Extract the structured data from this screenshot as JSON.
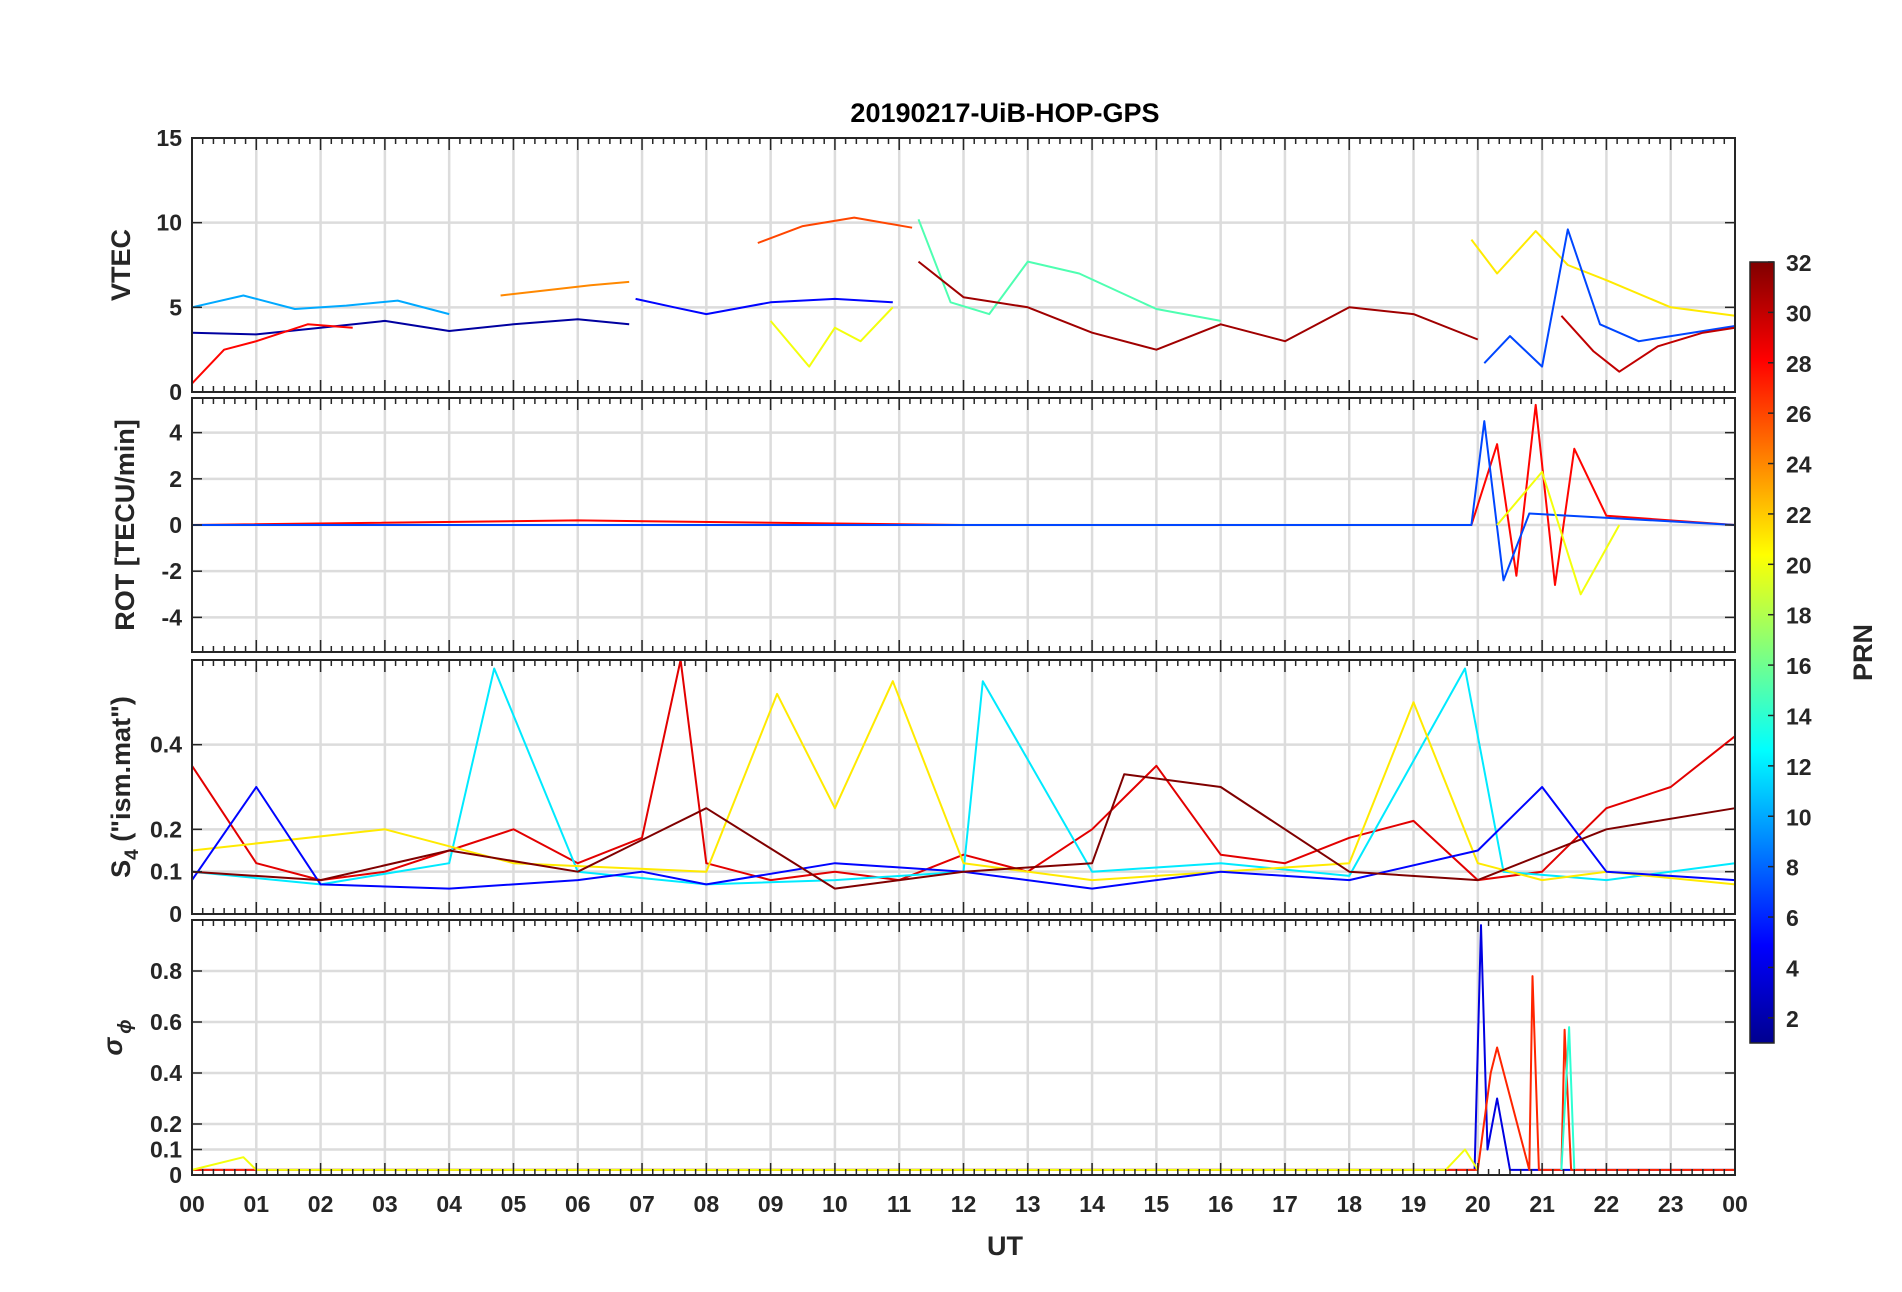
{
  "chart_data": {
    "type": "line",
    "title": "20190217-UiB-HOP-GPS",
    "xlabel": "UT",
    "x_tick_labels": [
      "00",
      "01",
      "02",
      "03",
      "04",
      "05",
      "06",
      "07",
      "08",
      "09",
      "10",
      "11",
      "12",
      "13",
      "14",
      "15",
      "16",
      "17",
      "18",
      "19",
      "20",
      "21",
      "22",
      "23",
      "00"
    ],
    "xlim": [
      0,
      24
    ],
    "grid": true,
    "colorbar": {
      "label": "PRN",
      "range": [
        1,
        32
      ],
      "ticks": [
        "2",
        "4",
        "6",
        "8",
        "10",
        "12",
        "14",
        "16",
        "18",
        "20",
        "22",
        "24",
        "26",
        "28",
        "30",
        "32"
      ],
      "colormap": "jet"
    },
    "panels": [
      {
        "id": "vtec",
        "ylabel": "VTEC",
        "ylim": [
          0,
          15
        ],
        "y_ticks": [
          "0",
          "5",
          "10",
          "15"
        ],
        "y_tick_values": [
          0,
          5,
          10,
          15
        ],
        "series": [
          {
            "prn": 2,
            "x": [
              0,
              1,
              2,
              3,
              4,
              5,
              6,
              6.8
            ],
            "y": [
              3.5,
              3.4,
              3.8,
              4.2,
              3.6,
              4.0,
              4.3,
              4.0
            ]
          },
          {
            "prn": 5,
            "x": [
              6.9,
              7.5,
              8,
              9,
              10,
              10.9
            ],
            "y": [
              5.5,
              5.0,
              4.6,
              5.3,
              5.5,
              5.3
            ]
          },
          {
            "prn": 10,
            "x": [
              0,
              0.8,
              1.6,
              2.4,
              3.2,
              4
            ],
            "y": [
              5.0,
              5.7,
              4.9,
              5.1,
              5.4,
              4.6
            ]
          },
          {
            "prn": 26,
            "x": [
              8.8,
              9.5,
              10.3,
              11.2
            ],
            "y": [
              8.8,
              9.8,
              10.3,
              9.7
            ]
          },
          {
            "prn": 20,
            "x": [
              9,
              9.6,
              10,
              10.4,
              10.9
            ],
            "y": [
              4.2,
              1.5,
              3.8,
              3.0,
              5.0
            ]
          },
          {
            "prn": 15,
            "x": [
              11.3,
              11.8,
              12.4,
              13,
              13.8,
              15,
              16
            ],
            "y": [
              10.2,
              5.3,
              4.6,
              7.7,
              7.0,
              4.9,
              4.2
            ]
          },
          {
            "prn": 31,
            "x": [
              11.3,
              12,
              13,
              14,
              15,
              16,
              17,
              18,
              19,
              20
            ],
            "y": [
              7.7,
              5.6,
              5.0,
              3.5,
              2.5,
              4.0,
              3.0,
              5.0,
              4.6,
              3.1
            ]
          },
          {
            "prn": 24,
            "x": [
              4.8,
              5.5,
              6.2,
              6.8
            ],
            "y": [
              5.7,
              6.0,
              6.3,
              6.5
            ]
          },
          {
            "prn": 21,
            "x": [
              19.9,
              20.3,
              20.9,
              21.4,
              22,
              23,
              24
            ],
            "y": [
              9.0,
              7.0,
              9.5,
              7.5,
              6.6,
              5.0,
              4.5
            ]
          },
          {
            "prn": 7,
            "x": [
              20.1,
              20.5,
              21,
              21.4,
              21.9,
              22.5,
              24
            ],
            "y": [
              1.7,
              3.3,
              1.5,
              9.6,
              4.0,
              3.0,
              3.9
            ]
          },
          {
            "prn": 28,
            "x": [
              0,
              0.5,
              1,
              1.8,
              2.5
            ],
            "y": [
              0.5,
              2.5,
              3.0,
              4.0,
              3.8
            ]
          },
          {
            "prn": 30,
            "x": [
              21.3,
              21.8,
              22.2,
              22.8,
              23.5,
              24
            ],
            "y": [
              4.5,
              2.4,
              1.2,
              2.7,
              3.5,
              3.8
            ]
          }
        ]
      },
      {
        "id": "rot",
        "ylabel": "ROT [TECU/min]",
        "ylim": [
          -5.5,
          5.5
        ],
        "y_ticks": [
          "-4",
          "-2",
          "0",
          "2",
          "4"
        ],
        "y_tick_values": [
          -4,
          -2,
          0,
          2,
          4
        ],
        "series": [
          {
            "prn": 28,
            "x": [
              0,
              6,
              12,
              19.9,
              20.3,
              20.6,
              20.9,
              21.2,
              21.5,
              22,
              24
            ],
            "y": [
              0,
              0.2,
              0,
              0,
              3.5,
              -2.2,
              5.2,
              -2.6,
              3.3,
              0.4,
              0
            ]
          },
          {
            "prn": 7,
            "x": [
              0,
              19.9,
              20.1,
              20.4,
              20.8,
              24
            ],
            "y": [
              0,
              0,
              4.5,
              -2.4,
              0.5,
              0
            ]
          },
          {
            "prn": 20,
            "x": [
              20.3,
              21,
              21.6,
              22.2
            ],
            "y": [
              0,
              2.3,
              -3.0,
              0
            ]
          }
        ]
      },
      {
        "id": "s4",
        "ylabel": "S4 (\"ism.mat\")",
        "ylim": [
          0,
          0.6
        ],
        "y_ticks": [
          "0",
          "0.1",
          "0.2",
          "0.4"
        ],
        "y_tick_values": [
          0,
          0.1,
          0.2,
          0.4
        ],
        "series": [
          {
            "prn": 29,
            "x": [
              0,
              1,
              2,
              3,
              4,
              5,
              6,
              7,
              7.6,
              8,
              9,
              10,
              11,
              12,
              13,
              14,
              15,
              16,
              17,
              18,
              19,
              20,
              21,
              22,
              23,
              24
            ],
            "y": [
              0.35,
              0.12,
              0.08,
              0.1,
              0.15,
              0.2,
              0.12,
              0.18,
              0.6,
              0.12,
              0.08,
              0.1,
              0.08,
              0.14,
              0.1,
              0.2,
              0.35,
              0.14,
              0.12,
              0.18,
              0.22,
              0.08,
              0.1,
              0.25,
              0.3,
              0.42
            ]
          },
          {
            "prn": 12,
            "x": [
              0,
              2,
              4,
              4.7,
              6,
              8,
              10,
              12,
              12.3,
              14,
              16,
              18,
              19.8,
              20.4,
              22,
              24
            ],
            "y": [
              0.1,
              0.07,
              0.12,
              0.58,
              0.1,
              0.07,
              0.08,
              0.1,
              0.55,
              0.1,
              0.12,
              0.09,
              0.58,
              0.1,
              0.08,
              0.12
            ]
          },
          {
            "prn": 21,
            "x": [
              0,
              3,
              5,
              8,
              9.1,
              10,
              10.9,
              12,
              14,
              16,
              18,
              19,
              20,
              21,
              22,
              24
            ],
            "y": [
              0.15,
              0.2,
              0.12,
              0.1,
              0.52,
              0.25,
              0.55,
              0.12,
              0.08,
              0.1,
              0.12,
              0.5,
              0.12,
              0.08,
              0.1,
              0.07
            ]
          },
          {
            "prn": 5,
            "x": [
              0,
              1,
              2,
              4,
              6,
              7,
              8,
              10,
              12,
              14,
              16,
              18,
              20,
              21,
              22,
              24
            ],
            "y": [
              0.08,
              0.3,
              0.07,
              0.06,
              0.08,
              0.1,
              0.07,
              0.12,
              0.1,
              0.06,
              0.1,
              0.08,
              0.15,
              0.3,
              0.1,
              0.08
            ]
          },
          {
            "prn": 32,
            "x": [
              0,
              2,
              4,
              6,
              8,
              10,
              12,
              14,
              14.5,
              16,
              18,
              20,
              22,
              24
            ],
            "y": [
              0.1,
              0.08,
              0.15,
              0.1,
              0.25,
              0.06,
              0.1,
              0.12,
              0.33,
              0.3,
              0.1,
              0.08,
              0.2,
              0.25
            ]
          }
        ]
      },
      {
        "id": "sigma_phi",
        "ylabel": "σ ϕ",
        "ylim": [
          0,
          1.0
        ],
        "y_ticks": [
          "0",
          "0.1",
          "0.2",
          "0.4",
          "0.6",
          "0.8"
        ],
        "y_tick_values": [
          0,
          0.1,
          0.2,
          0.4,
          0.6,
          0.8
        ],
        "series": [
          {
            "prn": 4,
            "x": [
              0,
              19.95,
              20.05,
              20.15,
              20.3,
              20.5,
              24
            ],
            "y": [
              0.02,
              0.02,
              0.98,
              0.1,
              0.3,
              0.02,
              0.02
            ]
          },
          {
            "prn": 27,
            "x": [
              0,
              20,
              20.2,
              20.3,
              20.8,
              20.85,
              20.95,
              21.3,
              21.35,
              21.45,
              24
            ],
            "y": [
              0.02,
              0.02,
              0.4,
              0.5,
              0.02,
              0.78,
              0.02,
              0.02,
              0.57,
              0.02,
              0.02
            ]
          },
          {
            "prn": 14,
            "x": [
              21.3,
              21.42,
              21.5
            ],
            "y": [
              0.02,
              0.58,
              0.02
            ]
          },
          {
            "prn": 20,
            "x": [
              0,
              0.8,
              1,
              19.5,
              19.8,
              20
            ],
            "y": [
              0.02,
              0.07,
              0.02,
              0.02,
              0.1,
              0.02
            ]
          }
        ]
      }
    ]
  }
}
